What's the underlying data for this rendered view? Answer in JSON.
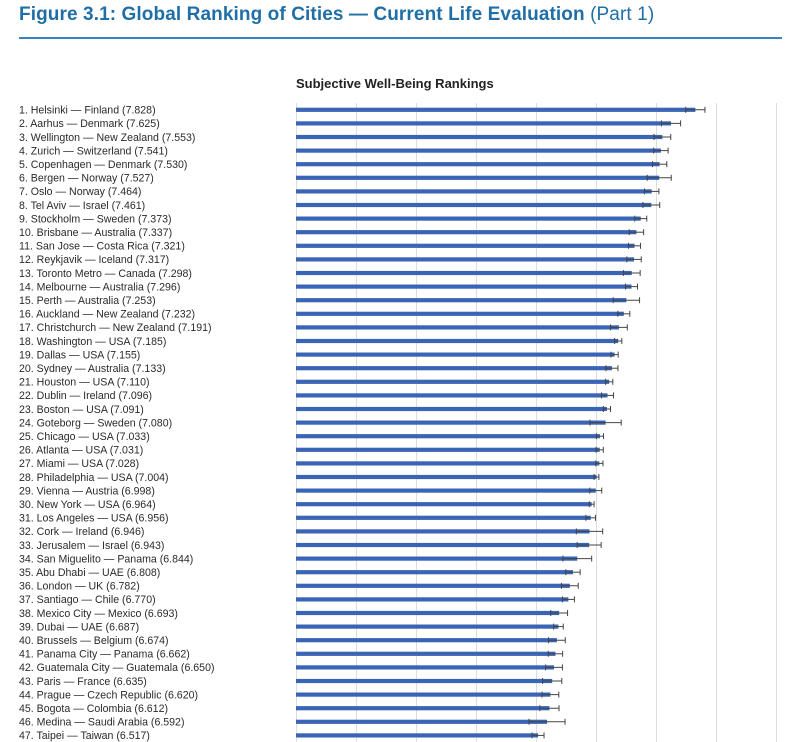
{
  "figure": {
    "title": "Figure 3.1: Global Ranking of Cities — Current Life Evaluation",
    "part": "(Part 1)"
  },
  "colors": {
    "accent": "#1f6fa6",
    "bar": "#3a64b6",
    "error": "#444444",
    "grid": "#dddddd"
  },
  "chart_data": {
    "type": "bar",
    "orientation": "horizontal",
    "title": "Subjective Well-Being Rankings",
    "xlim": [
      4.5,
      8.5
    ],
    "grid": true,
    "categories": [
      "1. Helsinki — Finland (7.828)",
      "2. Aarhus — Denmark (7.625)",
      "3. Wellington — New Zealand (7.553)",
      "4. Zurich — Switzerland (7.541)",
      "5. Copenhagen — Denmark (7.530)",
      "6. Bergen — Norway (7.527)",
      "7. Oslo — Norway (7.464)",
      "8. Tel Aviv — Israel (7.461)",
      "9. Stockholm — Sweden (7.373)",
      "10. Brisbane — Australia (7.337)",
      "11. San Jose — Costa Rica (7.321)",
      "12. Reykjavik — Iceland (7.317)",
      "13. Toronto Metro — Canada (7.298)",
      "14. Melbourne — Australia (7.296)",
      "15. Perth — Australia (7.253)",
      "16. Auckland — New Zealand (7.232)",
      "17. Christchurch — New Zealand (7.191)",
      "18. Washington — USA (7.185)",
      "19. Dallas — USA (7.155)",
      "20. Sydney — Australia (7.133)",
      "21. Houston — USA (7.110)",
      "22. Dublin — Ireland (7.096)",
      "23. Boston — USA (7.091)",
      "24. Goteborg — Sweden (7.080)",
      "25. Chicago — USA (7.033)",
      "26. Atlanta — USA (7.031)",
      "27. Miami — USA (7.028)",
      "28. Philadelphia — USA (7.004)",
      "29. Vienna — Austria (6.998)",
      "30. New York — USA (6.964)",
      "31. Los Angeles — USA (6.956)",
      "32. Cork — Ireland (6.946)",
      "33. Jerusalem — Israel (6.943)",
      "34. San Miguelito — Panama (6.844)",
      "35. Abu Dhabi — UAE (6.808)",
      "36. London — UK (6.782)",
      "37. Santiago — Chile (6.770)",
      "38. Mexico City — Mexico (6.693)",
      "39. Dubai — UAE (6.687)",
      "40. Brussels — Belgium (6.674)",
      "41. Panama City — Panama (6.662)",
      "42. Guatemala City — Guatemala (6.650)",
      "43. Paris — France (6.635)",
      "44. Prague — Czech Republic (6.620)",
      "45. Bogota — Colombia (6.612)",
      "46. Medina — Saudi Arabia (6.592)",
      "47. Taipei — Taiwan (6.517)"
    ],
    "values": [
      7.828,
      7.625,
      7.553,
      7.541,
      7.53,
      7.527,
      7.464,
      7.461,
      7.373,
      7.337,
      7.321,
      7.317,
      7.298,
      7.296,
      7.253,
      7.232,
      7.191,
      7.185,
      7.155,
      7.133,
      7.11,
      7.096,
      7.091,
      7.08,
      7.033,
      7.031,
      7.028,
      7.004,
      6.998,
      6.964,
      6.956,
      6.946,
      6.943,
      6.844,
      6.808,
      6.782,
      6.77,
      6.693,
      6.687,
      6.674,
      6.662,
      6.65,
      6.635,
      6.62,
      6.612,
      6.592,
      6.517
    ],
    "errors": [
      0.08,
      0.08,
      0.07,
      0.06,
      0.06,
      0.1,
      0.06,
      0.07,
      0.05,
      0.06,
      0.05,
      0.06,
      0.07,
      0.05,
      0.11,
      0.05,
      0.07,
      0.03,
      0.03,
      0.05,
      0.03,
      0.05,
      0.03,
      0.13,
      0.03,
      0.03,
      0.03,
      0.02,
      0.05,
      0.02,
      0.04,
      0.11,
      0.1,
      0.12,
      0.06,
      0.07,
      0.05,
      0.07,
      0.04,
      0.07,
      0.06,
      0.07,
      0.08,
      0.07,
      0.08,
      0.15,
      0.05
    ]
  }
}
